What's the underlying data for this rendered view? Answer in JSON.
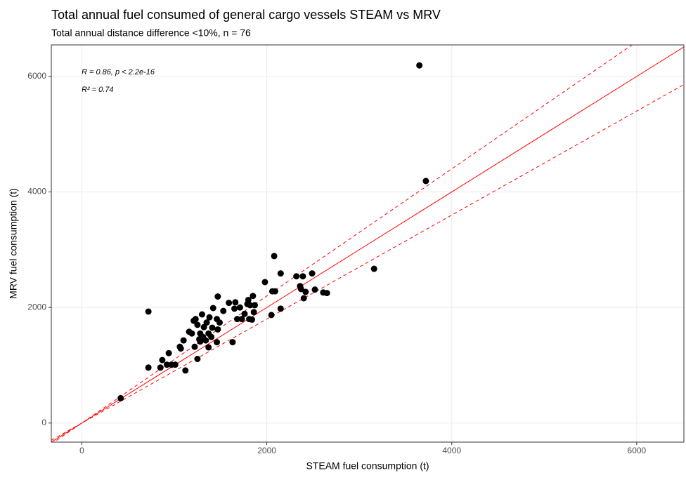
{
  "chart_data": {
    "type": "scatter",
    "title": "Total annual fuel consumed of general cargo vessels STEAM vs MRV",
    "subtitle": "Total annual distance difference <10%, n = 76",
    "x_label": "STEAM fuel consumption (t)",
    "y_label": "MRV fuel consumption (t)",
    "annotations": [
      "R = 0.86, p < 2.2e-16",
      "R² = 0.74"
    ],
    "xlim": [
      -330,
      6510
    ],
    "ylim": [
      -330,
      6545
    ],
    "xticks": [
      0,
      2000,
      4000,
      6000
    ],
    "yticks": [
      0,
      2000,
      4000,
      6000
    ],
    "grid": true,
    "color": "#000000",
    "reference_lines": [
      {
        "slope": 1,
        "style": "solid",
        "color": "#ff0000"
      },
      {
        "slope": 1.1,
        "style": "dashed",
        "color": "#ff0000"
      },
      {
        "slope": 0.9,
        "style": "dashed",
        "color": "#ff0000"
      }
    ],
    "series": [
      {
        "name": "vessels",
        "color": "#000000",
        "x": [
          420,
          720,
          720,
          850,
          870,
          920,
          940,
          970,
          1010,
          1060,
          1070,
          1100,
          1120,
          1160,
          1190,
          1210,
          1230,
          1220,
          1250,
          1250,
          1280,
          1280,
          1300,
          1310,
          1320,
          1340,
          1370,
          1380,
          1400,
          1410,
          1370,
          1420,
          1460,
          1470,
          1460,
          1470,
          1490,
          1630,
          1590,
          1650,
          1660,
          1680,
          1710,
          1730,
          1760,
          1790,
          1800,
          1810,
          1820,
          1840,
          1850,
          1870,
          1980,
          2050,
          2060,
          2080,
          2090,
          2150,
          2150,
          2320,
          2360,
          2390,
          2370,
          2400,
          2420,
          2490,
          2520,
          2610,
          2650,
          3160,
          3650,
          3720,
          1270,
          1530,
          1860,
          1350
        ],
        "values": [
          430,
          1930,
          960,
          960,
          1090,
          1010,
          1210,
          1010,
          1010,
          1320,
          1290,
          1430,
          910,
          1580,
          1550,
          1770,
          1800,
          1320,
          1110,
          1700,
          1410,
          1550,
          1880,
          1490,
          1660,
          1430,
          1550,
          1830,
          1490,
          1650,
          1310,
          1990,
          1800,
          1620,
          1400,
          2190,
          1740,
          1400,
          2080,
          1980,
          2090,
          1800,
          2000,
          1800,
          1890,
          2060,
          2130,
          1800,
          2040,
          1790,
          2200,
          2040,
          2440,
          1870,
          2280,
          2890,
          2280,
          2590,
          1980,
          2540,
          2370,
          2540,
          2320,
          2160,
          2270,
          2590,
          2310,
          2260,
          2250,
          2670,
          6190,
          4190,
          1450,
          1940,
          1920,
          1740
        ]
      }
    ]
  }
}
